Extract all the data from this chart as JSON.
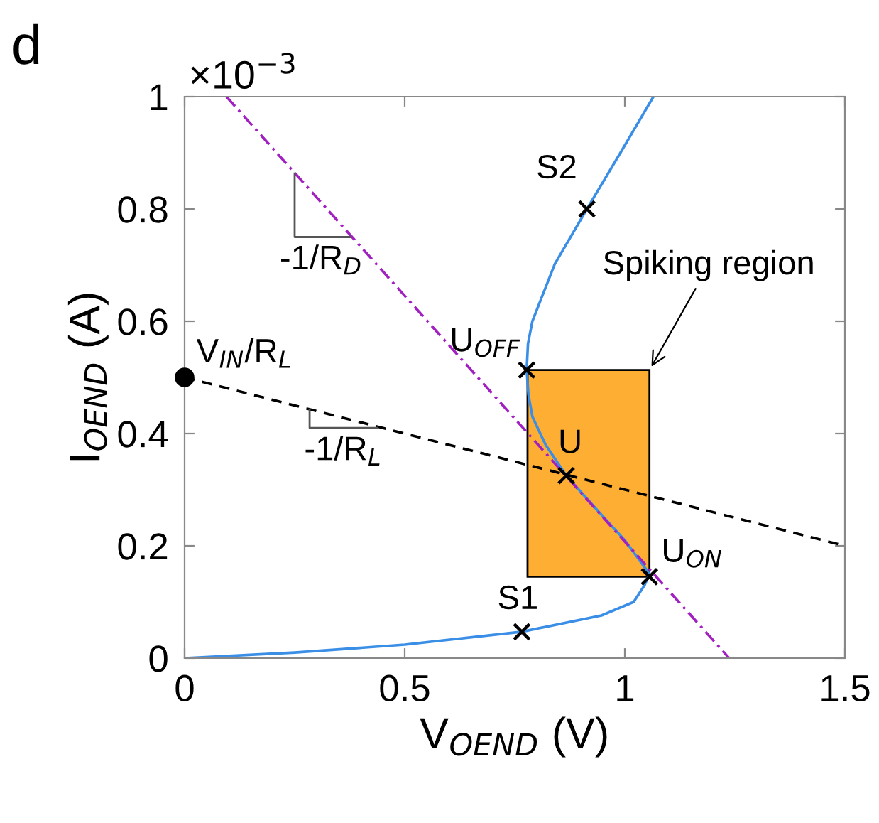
{
  "chart_data": {
    "type": "line",
    "xlabel": "V$_{OEND}$ (V)",
    "ylabel": "I$_{OEND}$ (A)",
    "xlim": [
      0,
      1.5
    ],
    "ylim": [
      0,
      1
    ],
    "xticks": [
      0,
      0.5,
      1,
      1.5
    ],
    "yticks": [
      0,
      0.2,
      0.4,
      0.6,
      0.8,
      1
    ],
    "grid": false,
    "legend": false,
    "series": [
      {
        "type": "area",
        "color": "#fdae33",
        "x": [
          0.779,
          0.779,
          1.056,
          1.056,
          0.779
        ],
        "values": [
          0.145,
          0.513,
          0.513,
          0.145,
          0.145
        ]
      },
      {
        "type": "line",
        "color": "#3a8ee6",
        "line_style": "solid",
        "x": [
          0,
          0.25,
          0.5,
          0.766,
          0.947,
          1.02,
          1.045,
          1.056,
          1.0,
          0.93,
          0.867,
          0.82,
          0.79,
          0.781,
          0.777,
          0.78,
          0.79,
          0.841,
          0.914,
          0.99,
          1.065
        ],
        "values": [
          0,
          0.01,
          0.024,
          0.047,
          0.076,
          0.1,
          0.13,
          0.15,
          0.21,
          0.27,
          0.325,
          0.38,
          0.43,
          0.47,
          0.513,
          0.56,
          0.6,
          0.702,
          0.8,
          0.9,
          1.0
        ]
      },
      {
        "type": "line",
        "color": "#a020c0",
        "line_style": "dashdot",
        "x": [
          0.095,
          1.237
        ],
        "values": [
          1.0,
          0
        ]
      },
      {
        "type": "line",
        "color": "#000000",
        "line_style": "dashed",
        "x": [
          0,
          1.5
        ],
        "values": [
          0.5,
          0.2
        ]
      },
      {
        "type": "line",
        "color": "#555555",
        "line_style": "solid",
        "x": [
          0.25,
          0.25,
          0.376
        ],
        "values": [
          0.863,
          0.75,
          0.75
        ]
      },
      {
        "type": "line",
        "color": "#555555",
        "line_style": "solid",
        "x": [
          0.284,
          0.284,
          0.437
        ],
        "values": [
          0.443,
          0.41,
          0.41
        ]
      },
      {
        "type": "scatter",
        "color": "#000000",
        "marker": "circle",
        "x": [
          0
        ],
        "values": [
          0.5
        ]
      },
      {
        "type": "scatter",
        "color": "#000000",
        "marker": "cross",
        "x": [
          0.766,
          0.914,
          0.867,
          1.056,
          0.777
        ],
        "values": [
          0.047,
          0.8,
          0.325,
          0.145,
          0.513
        ]
      }
    ],
    "annotations": [
      "d",
      "×10$^{−3}$",
      {
        "text": "S1",
        "x": 0.766,
        "y": 0.047
      },
      {
        "text": "S2",
        "x": 0.914,
        "y": 0.8
      },
      {
        "text": "U",
        "x": 0.867,
        "y": 0.325
      },
      {
        "text": "U$_{ON}$",
        "x": 1.056,
        "y": 0.145
      },
      {
        "text": "U$_{OFF}$",
        "x": 0.777,
        "y": 0.513
      },
      {
        "text": "V$_{IN}$/R$_{L}$",
        "x": 0,
        "y": 0.5
      },
      {
        "text": "-1/R$_{D}$",
        "x": 0.31,
        "y": 0.75
      },
      {
        "text": "-1/R$_{L}$",
        "x": 0.36,
        "y": 0.41
      },
      {
        "text": "Spiking region",
        "x": 1.056,
        "y": 0.513
      }
    ]
  }
}
